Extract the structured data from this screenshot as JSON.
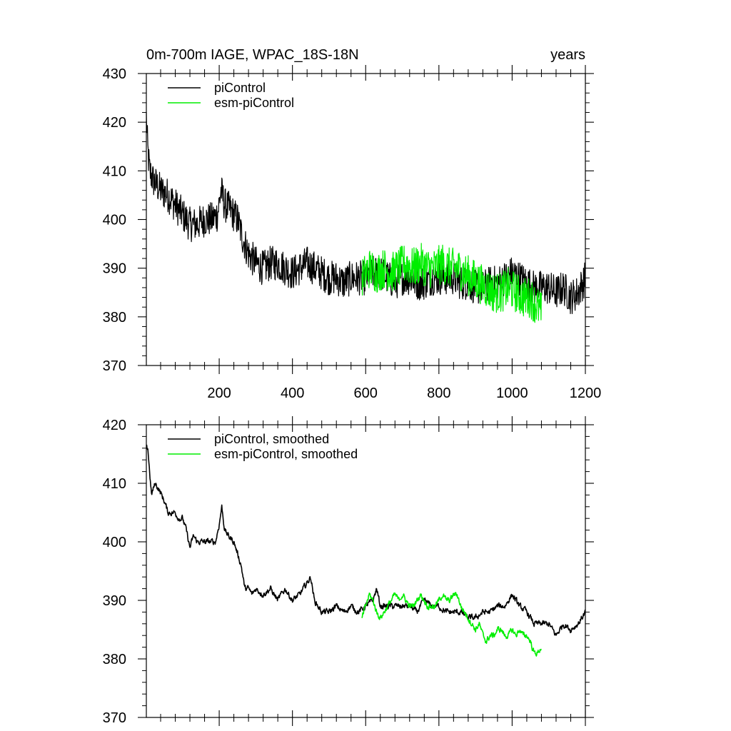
{
  "header": {
    "title": "0m-700m IAGE, WPAC_18S-18N",
    "units": "years"
  },
  "colors": {
    "piControl": "#000000",
    "esm_piControl": "#00ee00"
  },
  "chart_data": [
    {
      "type": "line",
      "title": "0m-700m IAGE, WPAC_18S-18N",
      "units_label": "years",
      "xlabel": "",
      "ylabel": "",
      "xlim": [
        1,
        1200
      ],
      "ylim": [
        370,
        430
      ],
      "x_ticks": [
        200,
        400,
        600,
        800,
        1000,
        1200
      ],
      "y_ticks": [
        370,
        380,
        390,
        400,
        410,
        420,
        430
      ],
      "grid": false,
      "legend_position": "top-left",
      "series": [
        {
          "name": "piControl",
          "color": "#000000",
          "x_range": [
            1,
            1200
          ],
          "anchors": [
            [
              1,
              421
            ],
            [
              5,
              414
            ],
            [
              10,
              410
            ],
            [
              20,
              408
            ],
            [
              40,
              406
            ],
            [
              60,
              405
            ],
            [
              80,
              403
            ],
            [
              100,
              401
            ],
            [
              120,
              399
            ],
            [
              140,
              399
            ],
            [
              160,
              400
            ],
            [
              180,
              400
            ],
            [
              195,
              401
            ],
            [
              205,
              406
            ],
            [
              215,
              403
            ],
            [
              230,
              402
            ],
            [
              250,
              400
            ],
            [
              265,
              396
            ],
            [
              280,
              393
            ],
            [
              300,
              391
            ],
            [
              320,
              390
            ],
            [
              340,
              391
            ],
            [
              360,
              391
            ],
            [
              380,
              390
            ],
            [
              400,
              389
            ],
            [
              420,
              390
            ],
            [
              440,
              391
            ],
            [
              460,
              390
            ],
            [
              480,
              389
            ],
            [
              500,
              388
            ],
            [
              520,
              388
            ],
            [
              540,
              387
            ],
            [
              560,
              388
            ],
            [
              580,
              388
            ],
            [
              600,
              388
            ],
            [
              620,
              389
            ],
            [
              640,
              389
            ],
            [
              660,
              388
            ],
            [
              680,
              387
            ],
            [
              700,
              388
            ],
            [
              720,
              388
            ],
            [
              740,
              387
            ],
            [
              760,
              387
            ],
            [
              780,
              388
            ],
            [
              800,
              388
            ],
            [
              820,
              388
            ],
            [
              840,
              388
            ],
            [
              860,
              387
            ],
            [
              880,
              387
            ],
            [
              900,
              386
            ],
            [
              920,
              386
            ],
            [
              940,
              387
            ],
            [
              960,
              387
            ],
            [
              980,
              388
            ],
            [
              1000,
              389
            ],
            [
              1020,
              388
            ],
            [
              1040,
              387
            ],
            [
              1060,
              386
            ],
            [
              1080,
              386
            ],
            [
              1100,
              386
            ],
            [
              1120,
              385
            ],
            [
              1140,
              386
            ],
            [
              1160,
              384
            ],
            [
              1180,
              385
            ],
            [
              1200,
              388
            ]
          ]
        },
        {
          "name": "esm-piControl",
          "color": "#00ee00",
          "x_range": [
            590,
            1080
          ],
          "anchors": [
            [
              590,
              388
            ],
            [
              610,
              390
            ],
            [
              630,
              389
            ],
            [
              650,
              390
            ],
            [
              670,
              389
            ],
            [
              690,
              390
            ],
            [
              710,
              391
            ],
            [
              730,
              390
            ],
            [
              750,
              391
            ],
            [
              770,
              390
            ],
            [
              790,
              390
            ],
            [
              810,
              391
            ],
            [
              830,
              390
            ],
            [
              850,
              390
            ],
            [
              870,
              389
            ],
            [
              890,
              388
            ],
            [
              910,
              387
            ],
            [
              930,
              386
            ],
            [
              950,
              385
            ],
            [
              970,
              385
            ],
            [
              990,
              386
            ],
            [
              1010,
              385
            ],
            [
              1030,
              384
            ],
            [
              1050,
              384
            ],
            [
              1070,
              382
            ],
            [
              1080,
              381
            ]
          ]
        }
      ]
    },
    {
      "type": "line",
      "title": "",
      "xlabel": "",
      "ylabel": "",
      "xlim": [
        1,
        1200
      ],
      "ylim": [
        370,
        420
      ],
      "x_ticks": [
        200,
        400,
        600,
        800,
        1000,
        1200
      ],
      "y_ticks": [
        370,
        380,
        390,
        400,
        410,
        420
      ],
      "grid": false,
      "legend_position": "top-left",
      "series": [
        {
          "name": "piControl, smoothed",
          "color": "#000000",
          "x_range": [
            1,
            1200
          ],
          "anchors": [
            [
              1,
              416
            ],
            [
              5,
              416
            ],
            [
              10,
              412
            ],
            [
              15,
              408
            ],
            [
              25,
              410
            ],
            [
              35,
              409
            ],
            [
              50,
              407
            ],
            [
              60,
              405
            ],
            [
              70,
              405
            ],
            [
              80,
              405
            ],
            [
              90,
              404
            ],
            [
              100,
              404
            ],
            [
              110,
              402
            ],
            [
              120,
              399
            ],
            [
              130,
              401
            ],
            [
              140,
              400
            ],
            [
              150,
              400
            ],
            [
              160,
              400
            ],
            [
              170,
              400
            ],
            [
              180,
              400
            ],
            [
              190,
              400
            ],
            [
              200,
              403
            ],
            [
              207,
              406
            ],
            [
              215,
              402
            ],
            [
              225,
              401
            ],
            [
              240,
              400
            ],
            [
              250,
              398
            ],
            [
              260,
              396
            ],
            [
              270,
              392
            ],
            [
              280,
              392
            ],
            [
              290,
              391
            ],
            [
              300,
              392
            ],
            [
              320,
              391
            ],
            [
              340,
              392
            ],
            [
              360,
              390
            ],
            [
              380,
              392
            ],
            [
              400,
              390
            ],
            [
              420,
              391
            ],
            [
              440,
              393
            ],
            [
              450,
              394
            ],
            [
              460,
              390
            ],
            [
              470,
              389
            ],
            [
              480,
              388
            ],
            [
              500,
              388
            ],
            [
              520,
              389
            ],
            [
              540,
              388
            ],
            [
              560,
              389
            ],
            [
              580,
              388
            ],
            [
              600,
              389
            ],
            [
              620,
              390
            ],
            [
              630,
              392
            ],
            [
              640,
              389
            ],
            [
              660,
              389
            ],
            [
              680,
              389
            ],
            [
              700,
              389
            ],
            [
              720,
              389
            ],
            [
              740,
              388
            ],
            [
              760,
              390
            ],
            [
              780,
              389
            ],
            [
              800,
              389
            ],
            [
              820,
              388
            ],
            [
              840,
              388
            ],
            [
              860,
              388
            ],
            [
              880,
              387
            ],
            [
              900,
              387
            ],
            [
              920,
              388
            ],
            [
              940,
              388
            ],
            [
              960,
              389
            ],
            [
              980,
              389
            ],
            [
              1000,
              391
            ],
            [
              1020,
              389
            ],
            [
              1040,
              388
            ],
            [
              1060,
              386
            ],
            [
              1080,
              386
            ],
            [
              1100,
              386
            ],
            [
              1110,
              385
            ],
            [
              1120,
              384
            ],
            [
              1140,
              386
            ],
            [
              1160,
              385
            ],
            [
              1180,
              386
            ],
            [
              1200,
              388
            ]
          ]
        },
        {
          "name": "esm-piControl, smoothed",
          "color": "#00ee00",
          "x_range": [
            590,
            1080
          ],
          "anchors": [
            [
              590,
              387
            ],
            [
              600,
              389
            ],
            [
              610,
              391
            ],
            [
              620,
              390
            ],
            [
              630,
              388
            ],
            [
              640,
              387
            ],
            [
              650,
              388
            ],
            [
              660,
              389
            ],
            [
              670,
              390
            ],
            [
              680,
              391
            ],
            [
              690,
              390
            ],
            [
              700,
              391
            ],
            [
              710,
              390
            ],
            [
              720,
              389
            ],
            [
              730,
              389
            ],
            [
              740,
              390
            ],
            [
              750,
              391
            ],
            [
              760,
              390
            ],
            [
              770,
              389
            ],
            [
              780,
              389
            ],
            [
              790,
              389
            ],
            [
              800,
              390
            ],
            [
              810,
              391
            ],
            [
              820,
              390
            ],
            [
              830,
              390
            ],
            [
              840,
              391
            ],
            [
              850,
              391
            ],
            [
              860,
              389
            ],
            [
              870,
              388
            ],
            [
              880,
              387
            ],
            [
              890,
              386
            ],
            [
              900,
              385
            ],
            [
              910,
              386
            ],
            [
              920,
              384
            ],
            [
              930,
              383
            ],
            [
              940,
              384
            ],
            [
              950,
              384
            ],
            [
              960,
              385
            ],
            [
              970,
              385
            ],
            [
              980,
              384
            ],
            [
              990,
              384
            ],
            [
              1000,
              385
            ],
            [
              1010,
              384
            ],
            [
              1020,
              385
            ],
            [
              1030,
              384
            ],
            [
              1040,
              384
            ],
            [
              1050,
              383
            ],
            [
              1060,
              381
            ],
            [
              1070,
              381
            ],
            [
              1080,
              382
            ]
          ]
        }
      ]
    }
  ]
}
